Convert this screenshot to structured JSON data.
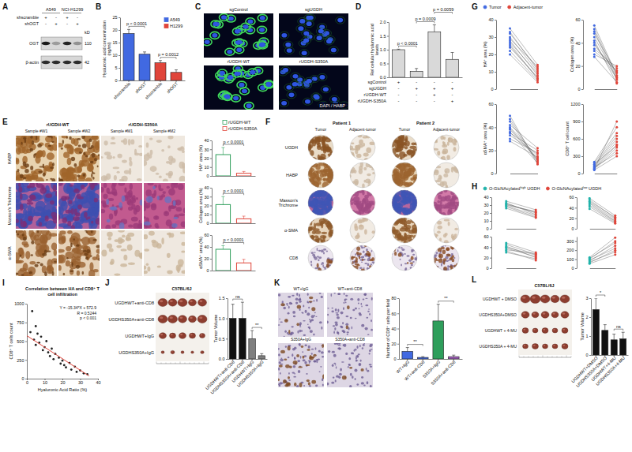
{
  "chart_data": [
    {
      "panel": "B",
      "type": "bar",
      "ylabel": "Hyaluronic acid concentration (ng/ml)",
      "categories": [
        "shscramble",
        "shOGT",
        "shscramble",
        "shOGT"
      ],
      "series": [
        {
          "name": "A549",
          "color": "#4169e1",
          "values": [
            18.6,
            10.4,
            null,
            null
          ],
          "errors": [
            1.6,
            0.9,
            null,
            null
          ]
        },
        {
          "name": "H1299",
          "color": "#e0453a",
          "values": [
            null,
            null,
            7.0,
            3.2
          ],
          "errors": [
            null,
            null,
            0.9,
            1.0
          ]
        }
      ],
      "ylim": [
        0,
        25
      ],
      "yticks": [
        0,
        5,
        10,
        15,
        20,
        25
      ],
      "legend": "upper right",
      "annotations": [
        {
          "text": "p < 0.0001",
          "from": 0,
          "to": 1
        },
        {
          "text": "p = 0.0012",
          "from": 2,
          "to": 3
        }
      ]
    },
    {
      "panel": "D",
      "type": "bar",
      "ylabel": "Rel cellular hyaluronic acid levels",
      "values": [
        1.0,
        0.22,
        1.65,
        0.65
      ],
      "errors": [
        0.02,
        0.1,
        0.25,
        0.25
      ],
      "color": "#d9d9d9",
      "ylim": [
        0,
        2
      ],
      "yticks": [
        {
          "value": 0,
          "label": "0.0"
        },
        {
          "value": 0.5,
          "label": "0.5"
        },
        {
          "value": 1,
          "label": "1.0"
        },
        {
          "value": 1.5,
          "label": "1.5"
        },
        {
          "value": 2,
          "label": "2.0"
        }
      ],
      "rows": [
        {
          "label": "sgControl",
          "marks": [
            "+",
            "-",
            "-",
            "-"
          ]
        },
        {
          "label": "sgUGDH",
          "marks": [
            "-",
            "+",
            "+",
            "+"
          ]
        },
        {
          "label": "rUGDH-WT",
          "marks": [
            "-",
            "-",
            "+",
            "-"
          ]
        },
        {
          "label": "rUGDH-S350A",
          "marks": [
            "-",
            "-",
            "-",
            "+"
          ]
        }
      ],
      "annotations": [
        {
          "text": "p < 0.0001",
          "from": 0,
          "to": 1
        },
        {
          "text": "p = 0.0009",
          "from": 1,
          "to": 2
        },
        {
          "text": "p = 0.0059",
          "from": 2,
          "to": 3
        }
      ]
    },
    {
      "type": "bar",
      "legend": "upper right",
      "series": [
        {
          "name": "rUGDH-WT",
          "color": "#2e9e5b"
        },
        {
          "name": "rUGDH-S350A",
          "color": "#e0453a"
        }
      ],
      "subplots": [
        {
          "ylabel": "HA⁺ area (%)",
          "values": [
            24,
            3
          ],
          "errors": [
            8,
            2
          ],
          "ylim": [
            0,
            40
          ],
          "yticks": [
            0,
            10,
            20,
            30,
            40
          ],
          "annotation": "p < 0.0001"
        },
        {
          "ylabel": "Collagen area (%)",
          "values": [
            21,
            5
          ],
          "errors": [
            9,
            3
          ],
          "ylim": [
            0,
            40
          ],
          "yticks": [
            0,
            10,
            20,
            30,
            40
          ],
          "annotation": "p < 0.0001"
        },
        {
          "ylabel": "αSMA⁺ area (%)",
          "values": [
            36,
            13
          ],
          "errors": [
            6,
            6
          ],
          "ylim": [
            0,
            60
          ],
          "yticks": [
            0,
            20,
            40,
            60
          ],
          "annotation": "p < 0.0001"
        }
      ]
    },
    {
      "panel": "G",
      "type": "paired",
      "legend": "top",
      "series": [
        {
          "name": "Tumor",
          "color": "#4169e1"
        },
        {
          "name": "Adjacent-tumor",
          "color": "#e0453a"
        }
      ],
      "subplots": [
        {
          "ylabel": "HA⁺ area (%)",
          "ylim": [
            0,
            40
          ],
          "yticks": [
            0,
            10,
            20,
            30,
            40
          ],
          "values": [
            [
              28,
              32,
              25,
              30,
              22,
              35,
              27,
              20,
              33,
              24,
              29,
              26
            ],
            [
              8,
              12,
              6,
              10,
              5,
              14,
              9,
              4,
              11,
              7,
              13,
              6
            ]
          ]
        },
        {
          "ylabel": "Collagen area (%)",
          "ylim": [
            0,
            60
          ],
          "yticks": [
            0,
            20,
            40,
            60
          ],
          "values": [
            [
              45,
              38,
              50,
              30,
              42,
              55,
              35,
              28,
              48,
              40,
              33,
              52
            ],
            [
              10,
              15,
              8,
              20,
              5,
              12,
              18,
              6,
              14,
              9,
              16,
              11
            ]
          ]
        },
        {
          "ylabel": "αSMA⁺ area (%)",
          "ylim": [
            0,
            60
          ],
          "yticks": [
            0,
            20,
            40,
            60
          ],
          "values": [
            [
              40,
              35,
              45,
              30,
              38,
              50,
              42,
              28,
              36,
              33,
              47,
              39
            ],
            [
              15,
              20,
              10,
              18,
              12,
              8,
              22,
              14,
              9,
              17,
              11,
              13
            ]
          ]
        },
        {
          "ylabel": "CD8⁺ T cell count",
          "ylim": [
            0,
            1200
          ],
          "yticks": [
            0,
            300,
            600,
            900,
            1200
          ],
          "values": [
            [
              100,
              150,
              80,
              200,
              120,
              60,
              180,
              90,
              140,
              110,
              70,
              160
            ],
            [
              500,
              650,
              400,
              800,
              550,
              300,
              700,
              450,
              600,
              350,
              900,
              480
            ]
          ]
        }
      ]
    },
    {
      "panel": "H",
      "type": "paired",
      "legend": "top",
      "series": [
        {
          "name": "O-GlcNAcylatedʰⁱᵍʰ UGDH",
          "color": "#20b2aa"
        },
        {
          "name": "O-GlcNAcylatedˡᵒʷ UGDH",
          "color": "#e0453a"
        }
      ],
      "subplots": [
        {
          "ylim": [
            0,
            40
          ],
          "yticks": [
            0,
            10,
            20,
            30,
            40
          ],
          "values": [
            [
              35,
              32,
              30,
              28,
              33,
              26,
              31,
              29
            ],
            [
              24,
              20,
              22,
              15,
              18,
              14,
              21,
              17
            ]
          ]
        },
        {
          "ylim": [
            0,
            60
          ],
          "yticks": [
            0,
            20,
            40,
            60
          ],
          "values": [
            [
              55,
              48,
              58,
              42,
              50,
              45,
              52,
              38
            ],
            [
              20,
              15,
              25,
              12,
              18,
              14,
              22,
              10
            ]
          ]
        },
        {
          "ylim": [
            0,
            60
          ],
          "yticks": [
            0,
            20,
            40,
            60
          ],
          "values": [
            [
              48,
              40,
              35,
              42,
              38,
              30,
              45,
              33
            ],
            [
              30,
              25,
              28,
              20,
              22,
              18,
              26,
              15
            ]
          ]
        },
        {
          "ylim": [
            0,
            350
          ],
          "yticks": [
            0,
            100,
            200,
            300
          ],
          "values": [
            [
              80,
              100,
              60,
              120,
              90,
              70,
              110,
              50
            ],
            [
              250,
              300,
              200,
              340,
              220,
              180,
              280,
              150
            ]
          ]
        }
      ]
    },
    {
      "panel": "I",
      "type": "scatter",
      "title": "Correlation between HA and CD8⁺ T cell infiltration",
      "xlabel": "Hyaluronic Acid Ratio (%)",
      "ylabel": "CD8⁺ T cells count",
      "xlim": [
        0,
        40
      ],
      "xticks": [
        0,
        10,
        20,
        30,
        40
      ],
      "ylim": [
        0,
        1000
      ],
      "yticks": [
        0,
        250,
        500,
        750,
        1000
      ],
      "series": [
        {
          "type": "scatter",
          "marker": "circle",
          "color": "#222222",
          "x": [
            2,
            3,
            4,
            5,
            5,
            6,
            7,
            8,
            9,
            10,
            11,
            12,
            13,
            14,
            15,
            16,
            18,
            19,
            20,
            21,
            22,
            24,
            25,
            27,
            28,
            30,
            32,
            34
          ],
          "values": [
            620,
            900,
            520,
            700,
            450,
            600,
            480,
            560,
            380,
            420,
            500,
            350,
            300,
            400,
            260,
            330,
            280,
            200,
            240,
            180,
            150,
            210,
            120,
            160,
            90,
            110,
            70,
            60
          ]
        },
        {
          "type": "line",
          "color": "#e0453a",
          "x": [
            0,
            35
          ],
          "values": [
            572.9,
            36.0
          ]
        }
      ],
      "annotations": [
        "Y = -15.34*X + 572.9",
        "R = 0.5244",
        "p < 0.001"
      ]
    },
    {
      "type": "bar",
      "ylabel": "Tumor Volume",
      "categories": [
        "UGDHWT+anti-CD8",
        "UGDHS350A+anti-CD8",
        "UGDHWT+IgG",
        "UGDHS350A+IgG"
      ],
      "values": [
        1.0,
        1.0,
        0.5,
        0.08
      ],
      "errors": [
        0.35,
        0.4,
        0.2,
        0.05
      ],
      "colors": [
        "#111111",
        "#111111",
        "#7f7f7f",
        "#7f7f7f"
      ],
      "ylim": [
        0,
        1.5
      ],
      "yticks": [
        {
          "value": 0,
          "label": "0.0"
        },
        {
          "value": 0.5,
          "label": "0.5"
        },
        {
          "value": 1,
          "label": "1.0"
        },
        {
          "value": 1.5,
          "label": "1.5"
        }
      ],
      "annotations": [
        {
          "text": "ns",
          "from": 0,
          "to": 1
        },
        {
          "text": "**",
          "from": 2,
          "to": 3
        }
      ]
    },
    {
      "type": "bar",
      "ylabel": "Number of CD8⁺ cells per field",
      "categories": [
        "WT+IgG",
        "WT+anti-CD8",
        "S350A+IgG",
        "S350A+anti-CD8"
      ],
      "values": [
        10,
        2,
        50,
        3
      ],
      "errors": [
        5,
        1,
        22,
        2
      ],
      "colors": [
        "#4169e1",
        "#4169e1",
        "#2e9e5b",
        "#9b59b6"
      ],
      "ylim": [
        0,
        80
      ],
      "yticks": [
        0,
        20,
        40,
        60,
        80
      ],
      "annotations": [
        {
          "text": "**",
          "from": 0,
          "to": 1
        },
        {
          "text": "**",
          "from": 2,
          "to": 3
        }
      ]
    },
    {
      "type": "bar",
      "ylabel": "Tumor Volume",
      "categories": [
        "UGDHWT+DMSO",
        "UGDHS350A+DMSO",
        "UGDHWT+4-MU",
        "UGDHS350A+4-MU"
      ],
      "values": [
        2.4,
        1.3,
        0.8,
        0.85
      ],
      "errors": [
        0.6,
        0.3,
        0.3,
        0.35
      ],
      "color": "#111111",
      "ylim": [
        0,
        3
      ],
      "yticks": [
        0,
        1,
        2,
        3
      ],
      "annotations": [
        {
          "text": "*",
          "from": 0,
          "to": 1
        },
        {
          "text": "ns",
          "from": 2,
          "to": 3
        }
      ]
    }
  ],
  "image_panels": [
    {
      "panel": "A",
      "cell_lines": [
        "A549",
        "NCI-H1299"
      ],
      "conditions": [
        {
          "label": "shscramble",
          "marks": [
            "+",
            "-",
            "+",
            "-"
          ]
        },
        {
          "label": "shOGT",
          "marks": [
            "-",
            "+",
            "-",
            "+"
          ]
        }
      ],
      "blots": [
        {
          "label": "OGT",
          "mw": "110"
        },
        {
          "label": "β-actin",
          "mw": "42"
        }
      ],
      "unit": "kD"
    },
    {
      "panel": "C",
      "tiles": [
        "sgControl",
        "sgUGDH",
        "rUGDH-WT",
        "rUGDH-S350A"
      ],
      "stain": "DAPI / HABP"
    },
    {
      "panel": "E",
      "groups": [
        "rUGDH-WT",
        "rUGDH-S350A"
      ],
      "samples": [
        "Sample #W1",
        "Sample #W2",
        "Sample #M1",
        "Sample #M2"
      ],
      "stains": [
        "HABP",
        "Masson's Trichrome",
        "α-SMA"
      ]
    },
    {
      "panel": "F",
      "patients": [
        "Patient 1",
        "Patient 2"
      ],
      "columns": [
        "Tumor",
        "Adjacent-tumor",
        "Tumor",
        "Adjacent-tumor"
      ],
      "stains": [
        "UGDH",
        "HABP",
        "Masson's Trichrome",
        "α-SMA",
        "CD8"
      ]
    },
    {
      "panel": "J",
      "strain": "C57BL/6J",
      "groups": [
        "UGDHWT+anti-CD8",
        "UGDHS350A+anti-CD8",
        "UGDHWT+IgG",
        "UGDHS350A+IgG"
      ]
    },
    {
      "panel": "K",
      "tiles": [
        "WT+IgG",
        "WT+anti-CD8",
        "S350A+IgG",
        "S350A+anti-CD8"
      ]
    },
    {
      "panel": "L",
      "strain": "C57BL/6J",
      "groups": [
        "UGDHWT + DMSO",
        "UGDHS350A+DMSO",
        "UGDHWT + 4-MU",
        "UGDHS350A + 4-MU"
      ]
    }
  ]
}
